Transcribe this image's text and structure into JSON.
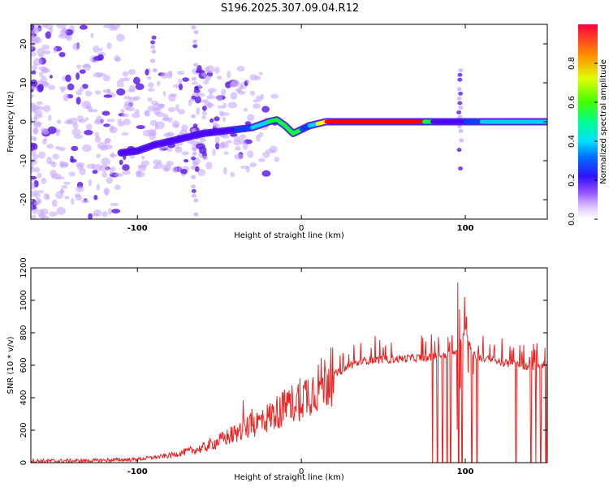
{
  "title": "S196.2025.307.09.04.R12",
  "chart_data": [
    {
      "type": "heatmap",
      "name": "spectrogram",
      "xlabel": "Height of straight line (km)",
      "ylabel": "Frequency (Hz)",
      "xlim": [
        -165,
        150
      ],
      "ylim": [
        -25,
        25
      ],
      "xticks": [
        -100,
        0,
        100
      ],
      "yticks": [
        -20,
        -10,
        0,
        10,
        20
      ],
      "colorbar": {
        "label": "Normalized spectral amplitude",
        "range": [
          0.0,
          1.0
        ],
        "ticks": [
          0.0,
          0.2,
          0.4,
          0.6,
          0.8
        ],
        "tick_labels": [
          "0.0",
          "0.2",
          "0.4",
          "0.6",
          "0.8"
        ],
        "colormap": [
          "#ffffff",
          "#e8d8ff",
          "#a070ff",
          "#5000ff",
          "#0040ff",
          "#00d0ff",
          "#00ff40",
          "#ffff00",
          "#ff8000",
          "#ff0000"
        ]
      },
      "ridge": {
        "x": [
          -110,
          -100,
          -90,
          -80,
          -70,
          -60,
          -50,
          -40,
          -30,
          -20,
          -15,
          -10,
          -5,
          0,
          5,
          10,
          15,
          20,
          40,
          60,
          75,
          80,
          85,
          90,
          95,
          100,
          110,
          120,
          130,
          140,
          150
        ],
        "freq": [
          -8,
          -7.5,
          -6,
          -5,
          -4,
          -3,
          -2.5,
          -2,
          -1.5,
          0,
          0.5,
          -1,
          -3,
          -2,
          -1,
          -0.5,
          0,
          0,
          0,
          0,
          0,
          0,
          0,
          0,
          0,
          0,
          0,
          0,
          0,
          0,
          0
        ],
        "amplitude": [
          0.3,
          0.35,
          0.35,
          0.35,
          0.3,
          0.35,
          0.35,
          0.4,
          0.45,
          0.6,
          0.75,
          0.5,
          0.85,
          0.4,
          0.5,
          0.6,
          0.95,
          1.0,
          1.0,
          1.0,
          0.9,
          0.4,
          0.35,
          0.35,
          0.3,
          0.35,
          0.5,
          0.6,
          0.6,
          0.55,
          0.5
        ]
      }
    },
    {
      "type": "line",
      "name": "snr",
      "xlabel": "Height of straight line (km)",
      "ylabel": "SNR (10 * v/v)",
      "xlim": [
        -165,
        150
      ],
      "ylim": [
        0,
        1200
      ],
      "xticks": [
        -100,
        0,
        100
      ],
      "yticks": [
        0,
        200,
        400,
        600,
        800,
        1000,
        1200
      ],
      "color": "#ee2020",
      "envelope_x": [
        -165,
        -130,
        -100,
        -80,
        -60,
        -40,
        -20,
        0,
        20,
        30,
        40,
        60,
        80,
        95,
        100,
        105,
        120,
        140,
        150
      ],
      "envelope_y": [
        10,
        12,
        20,
        45,
        90,
        180,
        280,
        400,
        540,
        600,
        630,
        640,
        650,
        680,
        820,
        660,
        620,
        590,
        610
      ],
      "dropouts_x": [
        80,
        83,
        86,
        89,
        91,
        96,
        98,
        104,
        107,
        131,
        140,
        143,
        146,
        149
      ]
    }
  ]
}
